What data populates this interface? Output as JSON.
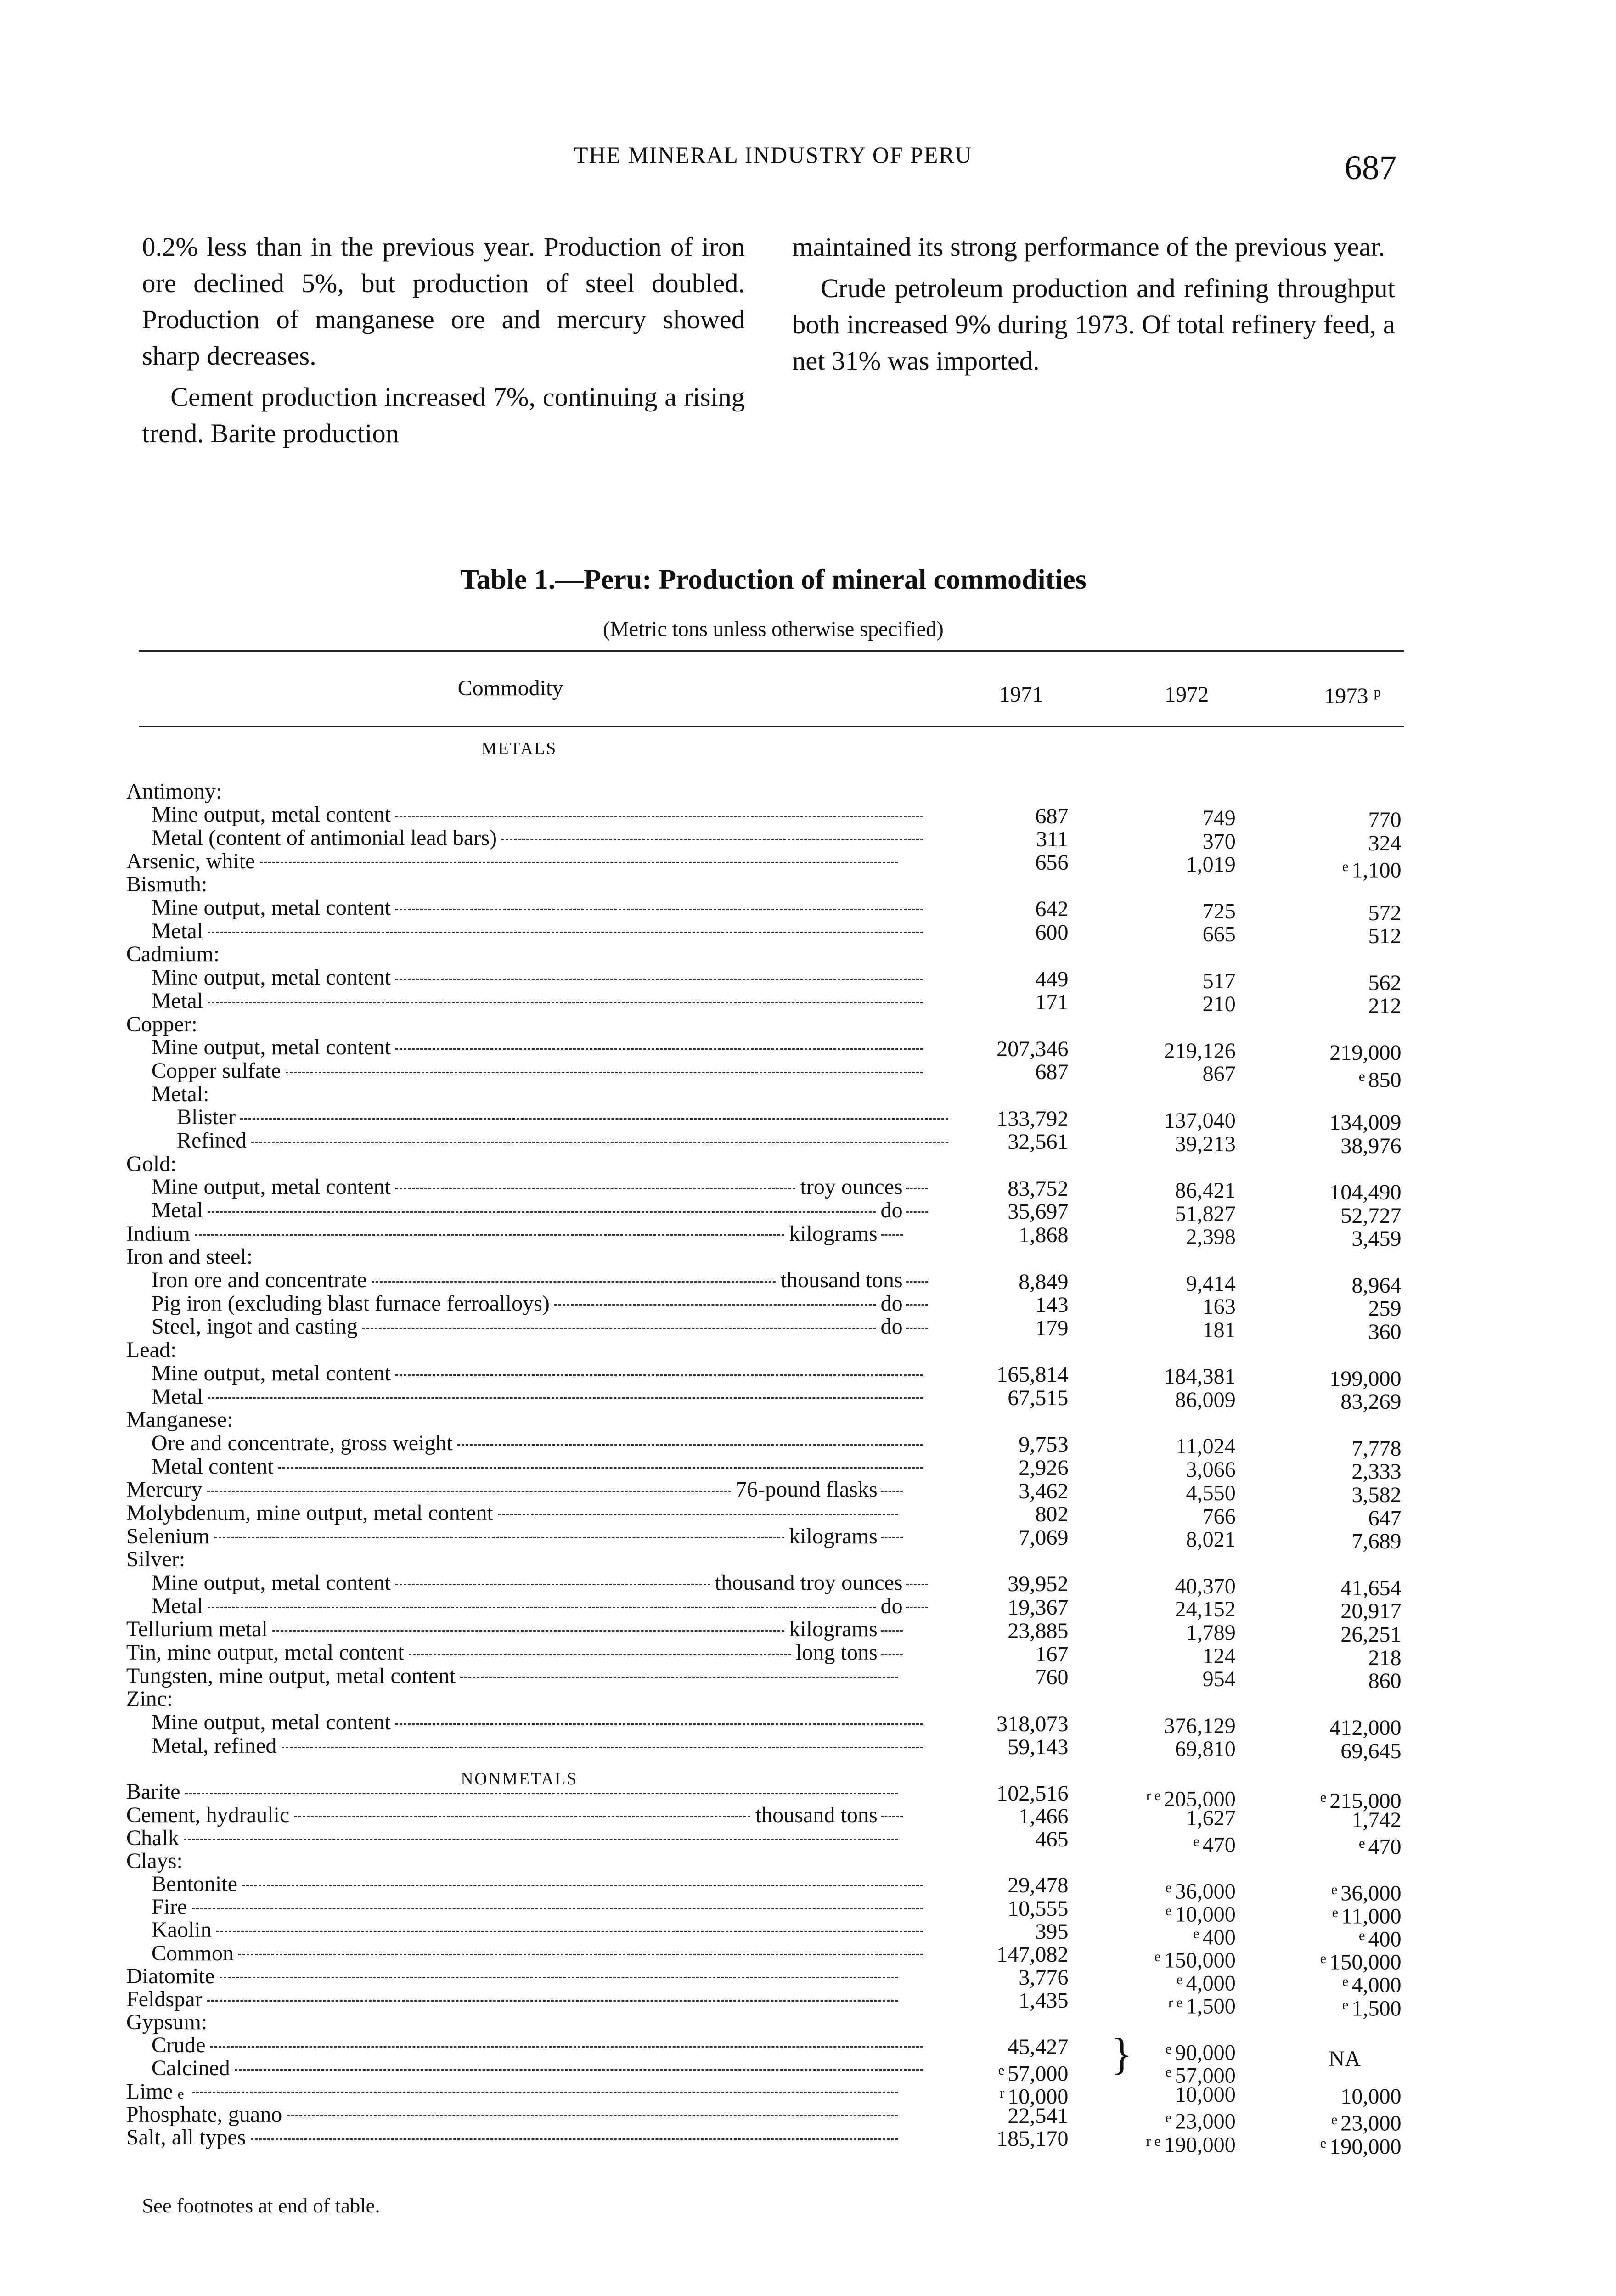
{
  "running_head": "THE MINERAL INDUSTRY OF PERU",
  "page_number": "687",
  "text": {
    "left": [
      "0.2% less than in the previous year. Production of iron ore declined 5%, but production of steel doubled. Production of manganese ore and mercury showed sharp decreases.",
      "Cement production increased 7%, continuing a rising trend. Barite production"
    ],
    "right": [
      "maintained its strong performance of the previous year.",
      "Crude petroleum production and refining throughput both increased 9% during 1973. Of total refinery feed, a net 31% was imported."
    ]
  },
  "table": {
    "title": "Table 1.—Peru:  Production of mineral commodities",
    "subtitle": "(Metric tons unless otherwise specified)",
    "headers": {
      "commodity": "Commodity",
      "y1": "1971",
      "y2": "1972",
      "y3": "1973",
      "y3_note": "p"
    },
    "sections": [
      {
        "name": "METALS",
        "rows": [
          {
            "l": "Antimony:",
            "i": 0
          },
          {
            "l": "Mine output, metal content",
            "i": 2,
            "v": [
              [
                "",
                "687"
              ],
              [
                "",
                "749"
              ],
              [
                "",
                "770"
              ]
            ]
          },
          {
            "l": "Metal (content of antimonial lead bars)",
            "i": 2,
            "v": [
              [
                "",
                "311"
              ],
              [
                "",
                "370"
              ],
              [
                "",
                "324"
              ]
            ]
          },
          {
            "l": "Arsenic, white",
            "i": 0,
            "v": [
              [
                "",
                "656"
              ],
              [
                "",
                "1,019"
              ],
              [
                "e",
                "1,100"
              ]
            ]
          },
          {
            "l": "Bismuth:",
            "i": 0
          },
          {
            "l": "Mine output, metal content",
            "i": 2,
            "v": [
              [
                "",
                "642"
              ],
              [
                "",
                "725"
              ],
              [
                "",
                "572"
              ]
            ]
          },
          {
            "l": "Metal",
            "i": 2,
            "v": [
              [
                "",
                "600"
              ],
              [
                "",
                "665"
              ],
              [
                "",
                "512"
              ]
            ]
          },
          {
            "l": "Cadmium:",
            "i": 0
          },
          {
            "l": "Mine output, metal content",
            "i": 2,
            "v": [
              [
                "",
                "449"
              ],
              [
                "",
                "517"
              ],
              [
                "",
                "562"
              ]
            ]
          },
          {
            "l": "Metal",
            "i": 2,
            "v": [
              [
                "",
                "171"
              ],
              [
                "",
                "210"
              ],
              [
                "",
                "212"
              ]
            ]
          },
          {
            "l": "Copper:",
            "i": 0
          },
          {
            "l": "Mine output, metal content",
            "i": 2,
            "v": [
              [
                "",
                "207,346"
              ],
              [
                "",
                "219,126"
              ],
              [
                "",
                "219,000"
              ]
            ]
          },
          {
            "l": "Copper sulfate",
            "i": 2,
            "v": [
              [
                "",
                "687"
              ],
              [
                "",
                "867"
              ],
              [
                "e",
                "850"
              ]
            ]
          },
          {
            "l": "Metal:",
            "i": 2
          },
          {
            "l": "Blister",
            "i": 4,
            "v": [
              [
                "",
                "133,792"
              ],
              [
                "",
                "137,040"
              ],
              [
                "",
                "134,009"
              ]
            ]
          },
          {
            "l": "Refined",
            "i": 4,
            "v": [
              [
                "",
                "32,561"
              ],
              [
                "",
                "39,213"
              ],
              [
                "",
                "38,976"
              ]
            ]
          },
          {
            "l": "Gold:",
            "i": 0
          },
          {
            "l": "Mine output, metal content",
            "u": "troy ounces",
            "i": 2,
            "v": [
              [
                "",
                "83,752"
              ],
              [
                "",
                "86,421"
              ],
              [
                "",
                "104,490"
              ]
            ]
          },
          {
            "l": "Metal",
            "u": "do",
            "i": 2,
            "v": [
              [
                "",
                "35,697"
              ],
              [
                "",
                "51,827"
              ],
              [
                "",
                "52,727"
              ]
            ]
          },
          {
            "l": "Indium",
            "u": "kilograms",
            "i": 0,
            "v": [
              [
                "",
                "1,868"
              ],
              [
                "",
                "2,398"
              ],
              [
                "",
                "3,459"
              ]
            ]
          },
          {
            "l": "Iron and steel:",
            "i": 0
          },
          {
            "l": "Iron ore and concentrate",
            "u": "thousand tons",
            "i": 2,
            "v": [
              [
                "",
                "8,849"
              ],
              [
                "",
                "9,414"
              ],
              [
                "",
                "8,964"
              ]
            ]
          },
          {
            "l": "Pig iron (excluding blast furnace ferroalloys)",
            "u": "do",
            "i": 2,
            "v": [
              [
                "",
                "143"
              ],
              [
                "",
                "163"
              ],
              [
                "",
                "259"
              ]
            ]
          },
          {
            "l": "Steel, ingot and casting",
            "u": "do",
            "i": 2,
            "v": [
              [
                "",
                "179"
              ],
              [
                "",
                "181"
              ],
              [
                "",
                "360"
              ]
            ]
          },
          {
            "l": "Lead:",
            "i": 0
          },
          {
            "l": "Mine output, metal content",
            "i": 2,
            "v": [
              [
                "",
                "165,814"
              ],
              [
                "",
                "184,381"
              ],
              [
                "",
                "199,000"
              ]
            ]
          },
          {
            "l": "Metal",
            "i": 2,
            "v": [
              [
                "",
                "67,515"
              ],
              [
                "",
                "86,009"
              ],
              [
                "",
                "83,269"
              ]
            ]
          },
          {
            "l": "Manganese:",
            "i": 0
          },
          {
            "l": "Ore and concentrate, gross weight",
            "i": 2,
            "v": [
              [
                "",
                "9,753"
              ],
              [
                "",
                "11,024"
              ],
              [
                "",
                "7,778"
              ]
            ]
          },
          {
            "l": "Metal content",
            "i": 2,
            "v": [
              [
                "",
                "2,926"
              ],
              [
                "",
                "3,066"
              ],
              [
                "",
                "2,333"
              ]
            ]
          },
          {
            "l": "Mercury",
            "u": "76-pound flasks",
            "i": 0,
            "v": [
              [
                "",
                "3,462"
              ],
              [
                "",
                "4,550"
              ],
              [
                "",
                "3,582"
              ]
            ]
          },
          {
            "l": "Molybdenum, mine output, metal content",
            "i": 0,
            "v": [
              [
                "",
                "802"
              ],
              [
                "",
                "766"
              ],
              [
                "",
                "647"
              ]
            ]
          },
          {
            "l": "Selenium",
            "u": "kilograms",
            "i": 0,
            "v": [
              [
                "",
                "7,069"
              ],
              [
                "",
                "8,021"
              ],
              [
                "",
                "7,689"
              ]
            ]
          },
          {
            "l": "Silver:",
            "i": 0
          },
          {
            "l": "Mine output, metal content",
            "u": "thousand troy ounces",
            "i": 2,
            "v": [
              [
                "",
                "39,952"
              ],
              [
                "",
                "40,370"
              ],
              [
                "",
                "41,654"
              ]
            ]
          },
          {
            "l": "Metal",
            "u": "do",
            "i": 2,
            "v": [
              [
                "",
                "19,367"
              ],
              [
                "",
                "24,152"
              ],
              [
                "",
                "20,917"
              ]
            ]
          },
          {
            "l": "Tellurium metal",
            "u": "kilograms",
            "i": 0,
            "v": [
              [
                "",
                "23,885"
              ],
              [
                "",
                "1,789"
              ],
              [
                "",
                "26,251"
              ]
            ]
          },
          {
            "l": "Tin, mine output, metal content",
            "u": "long tons",
            "i": 0,
            "v": [
              [
                "",
                "167"
              ],
              [
                "",
                "124"
              ],
              [
                "",
                "218"
              ]
            ]
          },
          {
            "l": "Tungsten, mine output, metal content",
            "i": 0,
            "v": [
              [
                "",
                "760"
              ],
              [
                "",
                "954"
              ],
              [
                "",
                "860"
              ]
            ]
          },
          {
            "l": "Zinc:",
            "i": 0
          },
          {
            "l": "Mine output, metal content",
            "i": 2,
            "v": [
              [
                "",
                "318,073"
              ],
              [
                "",
                "376,129"
              ],
              [
                "",
                "412,000"
              ]
            ]
          },
          {
            "l": "Metal, refined",
            "i": 2,
            "v": [
              [
                "",
                "59,143"
              ],
              [
                "",
                "69,810"
              ],
              [
                "",
                "69,645"
              ]
            ]
          }
        ]
      },
      {
        "name": "NONMETALS",
        "rows": [
          {
            "l": "Barite",
            "i": 0,
            "v": [
              [
                "",
                "102,516"
              ],
              [
                "r e",
                "205,000"
              ],
              [
                "e",
                "215,000"
              ]
            ]
          },
          {
            "l": "Cement, hydraulic",
            "u": "thousand tons",
            "i": 0,
            "v": [
              [
                "",
                "1,466"
              ],
              [
                "",
                "1,627"
              ],
              [
                "",
                "1,742"
              ]
            ]
          },
          {
            "l": "Chalk",
            "i": 0,
            "v": [
              [
                "",
                "465"
              ],
              [
                "e",
                "470"
              ],
              [
                "e",
                "470"
              ]
            ]
          },
          {
            "l": "Clays:",
            "i": 0
          },
          {
            "l": "Bentonite",
            "i": 2,
            "v": [
              [
                "",
                "29,478"
              ],
              [
                "e",
                "36,000"
              ],
              [
                "e",
                "36,000"
              ]
            ]
          },
          {
            "l": "Fire",
            "i": 2,
            "v": [
              [
                "",
                "10,555"
              ],
              [
                "e",
                "10,000"
              ],
              [
                "e",
                "11,000"
              ]
            ]
          },
          {
            "l": "Kaolin",
            "i": 2,
            "v": [
              [
                "",
                "395"
              ],
              [
                "e",
                "400"
              ],
              [
                "e",
                "400"
              ]
            ]
          },
          {
            "l": "Common",
            "i": 2,
            "v": [
              [
                "",
                "147,082"
              ],
              [
                "e",
                "150,000"
              ],
              [
                "e",
                "150,000"
              ]
            ]
          },
          {
            "l": "Diatomite",
            "i": 0,
            "v": [
              [
                "",
                "3,776"
              ],
              [
                "e",
                "4,000"
              ],
              [
                "e",
                "4,000"
              ]
            ]
          },
          {
            "l": "Feldspar",
            "i": 0,
            "v": [
              [
                "",
                "1,435"
              ],
              [
                "r e",
                "1,500"
              ],
              [
                "e",
                "1,500"
              ]
            ]
          },
          {
            "l": "Gypsum:",
            "i": 0
          },
          {
            "l": "Crude",
            "i": 2,
            "v": [
              [
                "",
                "45,427"
              ],
              [
                "e",
                "90,000"
              ],
              [
                "",
                ""
              ]
            ]
          },
          {
            "l": "Calcined",
            "i": 2,
            "v": [
              [
                "e",
                "57,000"
              ],
              [
                "e",
                "57,000"
              ],
              [
                "",
                ""
              ]
            ]
          },
          {
            "l": "Lime",
            "ln": "e",
            "i": 0,
            "v": [
              [
                "r",
                "10,000"
              ],
              [
                "",
                "10,000"
              ],
              [
                "",
                "10,000"
              ]
            ]
          },
          {
            "l": "Phosphate, guano",
            "i": 0,
            "v": [
              [
                "",
                "22,541"
              ],
              [
                "e",
                "23,000"
              ],
              [
                "e",
                "23,000"
              ]
            ]
          },
          {
            "l": "Salt, all types",
            "i": 0,
            "v": [
              [
                "",
                "185,170"
              ],
              [
                "r e",
                "190,000"
              ],
              [
                "e",
                "190,000"
              ]
            ]
          }
        ]
      }
    ],
    "gypsum_1973": "NA",
    "footnote_ref": "See footnotes at end of table."
  }
}
